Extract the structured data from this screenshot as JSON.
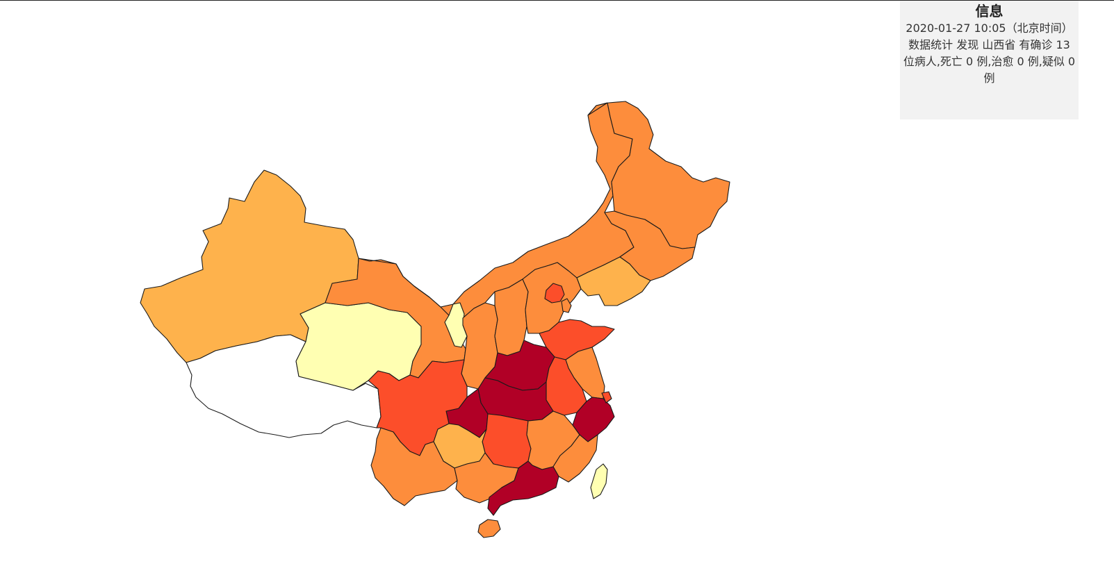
{
  "info_panel": {
    "title": "信息",
    "time": "2020-01-27 10:05（北京时间）",
    "body": "数据统计 发现 山西省 有确诊 13 位病人,死亡 0 例,治愈 0 例,疑似 0 例"
  },
  "colors": {
    "background": "#ffffff",
    "panel": "#f2f2f2",
    "border": "#1a1a1a",
    "scale": [
      "#ffffff",
      "#ffffb2",
      "#feb24c",
      "#fd8d3c",
      "#fc4e2a",
      "#b10026"
    ]
  },
  "provinces": [
    {
      "name": "xinjiang",
      "level": 2
    },
    {
      "name": "tibet",
      "level": 0
    },
    {
      "name": "qinghai",
      "level": 1
    },
    {
      "name": "gansu",
      "level": 3
    },
    {
      "name": "inner-mongolia",
      "level": 3
    },
    {
      "name": "heilongjiang",
      "level": 3
    },
    {
      "name": "jilin",
      "level": 3
    },
    {
      "name": "liaoning",
      "level": 2
    },
    {
      "name": "ningxia",
      "level": 1
    },
    {
      "name": "shaanxi",
      "level": 3
    },
    {
      "name": "shanxi",
      "level": 3
    },
    {
      "name": "hebei",
      "level": 3
    },
    {
      "name": "beijing",
      "level": 4
    },
    {
      "name": "tianjin",
      "level": 3
    },
    {
      "name": "shandong",
      "level": 4
    },
    {
      "name": "henan",
      "level": 5
    },
    {
      "name": "jiangsu",
      "level": 3
    },
    {
      "name": "anhui",
      "level": 4
    },
    {
      "name": "hubei",
      "level": 5
    },
    {
      "name": "chongqing",
      "level": 5
    },
    {
      "name": "sichuan",
      "level": 4
    },
    {
      "name": "zhejiang",
      "level": 5
    },
    {
      "name": "shanghai",
      "level": 4
    },
    {
      "name": "hunan",
      "level": 4
    },
    {
      "name": "jiangxi",
      "level": 3
    },
    {
      "name": "fujian",
      "level": 3
    },
    {
      "name": "guizhou",
      "level": 2
    },
    {
      "name": "yunnan",
      "level": 3
    },
    {
      "name": "guangxi",
      "level": 3
    },
    {
      "name": "guangdong",
      "level": 5
    },
    {
      "name": "hainan",
      "level": 3
    },
    {
      "name": "taiwan",
      "level": 1
    }
  ]
}
